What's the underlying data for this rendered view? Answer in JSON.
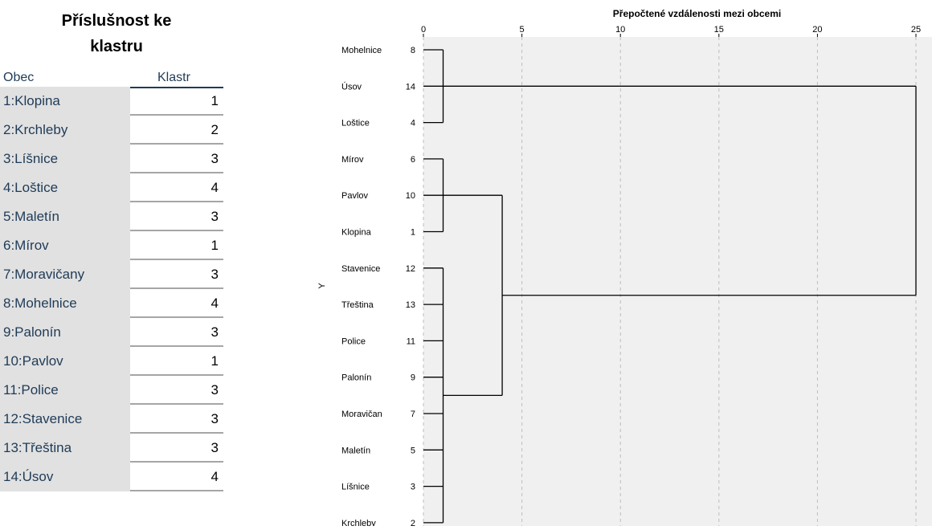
{
  "table": {
    "title_line1": "Příslušnost ke",
    "title_line2": "klastru",
    "header_obec": "Obec",
    "header_klastr": "Klastr",
    "rows": [
      {
        "obec": "1:Klopina",
        "klastr": "1"
      },
      {
        "obec": "2:Krchleby",
        "klastr": "2"
      },
      {
        "obec": "3:Líšnice",
        "klastr": "3"
      },
      {
        "obec": "4:Loštice",
        "klastr": "4"
      },
      {
        "obec": "5:Maletín",
        "klastr": "3"
      },
      {
        "obec": "6:Mírov",
        "klastr": "1"
      },
      {
        "obec": "7:Moravičany",
        "klastr": "3"
      },
      {
        "obec": "8:Mohelnice",
        "klastr": "4"
      },
      {
        "obec": "9:Palonín",
        "klastr": "3"
      },
      {
        "obec": "10:Pavlov",
        "klastr": "1"
      },
      {
        "obec": "11:Police",
        "klastr": "3"
      },
      {
        "obec": "12:Stavenice",
        "klastr": "3"
      },
      {
        "obec": "13:Třeština",
        "klastr": "3"
      },
      {
        "obec": "14:Úsov",
        "klastr": "4"
      }
    ]
  },
  "chart_data": {
    "type": "dendrogram",
    "title": "Přepočtené vzdálenosti mezi obcemi",
    "ylabel": "Y",
    "xlim": [
      0,
      25
    ],
    "xticks": [
      0,
      5,
      10,
      15,
      20,
      25
    ],
    "grid": true,
    "leaves": [
      {
        "name": "Mohelnice",
        "id": "8"
      },
      {
        "name": "Úsov",
        "id": "14"
      },
      {
        "name": "Loštice",
        "id": "4"
      },
      {
        "name": "Mírov",
        "id": "6"
      },
      {
        "name": "Pavlov",
        "id": "10"
      },
      {
        "name": "Klopina",
        "id": "1"
      },
      {
        "name": "Stavenice",
        "id": "12"
      },
      {
        "name": "Třeština",
        "id": "13"
      },
      {
        "name": "Police",
        "id": "11"
      },
      {
        "name": "Palonín",
        "id": "9"
      },
      {
        "name": "Moravičan",
        "id": "7"
      },
      {
        "name": "Maletín",
        "id": "5"
      },
      {
        "name": "Líšnice",
        "id": "3"
      },
      {
        "name": "Krchleby",
        "id": "2"
      }
    ],
    "merges": [
      {
        "members": [
          0,
          1,
          2
        ],
        "height": 1
      },
      {
        "members": [
          3,
          4,
          5
        ],
        "height": 1
      },
      {
        "members": [
          6,
          7,
          8,
          9,
          10,
          11,
          12,
          13
        ],
        "height": 1
      },
      {
        "members": [
          "m1",
          "m2"
        ],
        "height": 4
      },
      {
        "members": [
          "m0",
          "m3"
        ],
        "height": 25
      }
    ]
  }
}
